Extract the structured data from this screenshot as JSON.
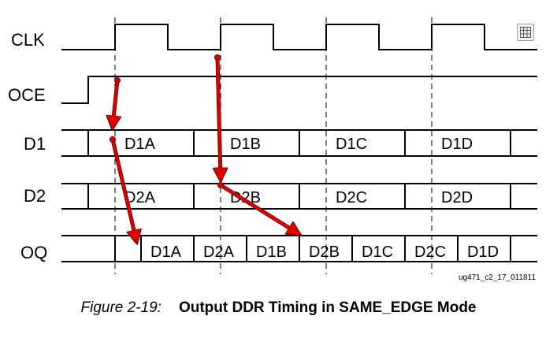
{
  "signals": {
    "clk": "CLK",
    "oce": "OCE",
    "d1": "D1",
    "d2": "D2",
    "oq": "OQ"
  },
  "d1_cells": [
    "D1A",
    "D1B",
    "D1C",
    "D1D"
  ],
  "d2_cells": [
    "D2A",
    "D2B",
    "D2C",
    "D2D"
  ],
  "oq_cells": [
    "D1A",
    "D2A",
    "D1B",
    "D2B",
    "D1C",
    "D2C",
    "D1D"
  ],
  "doc_code": "ug471_c2_17_011811",
  "caption": {
    "number": "Figure 2-19:",
    "title": "Output DDR Timing in SAME_EDGE Mode"
  },
  "colors": {
    "arrow": "#e00000",
    "arrow_edge": "#6a0000",
    "line": "#000000",
    "guide": "#000000"
  },
  "icons": {
    "corner": "grid-icon"
  }
}
